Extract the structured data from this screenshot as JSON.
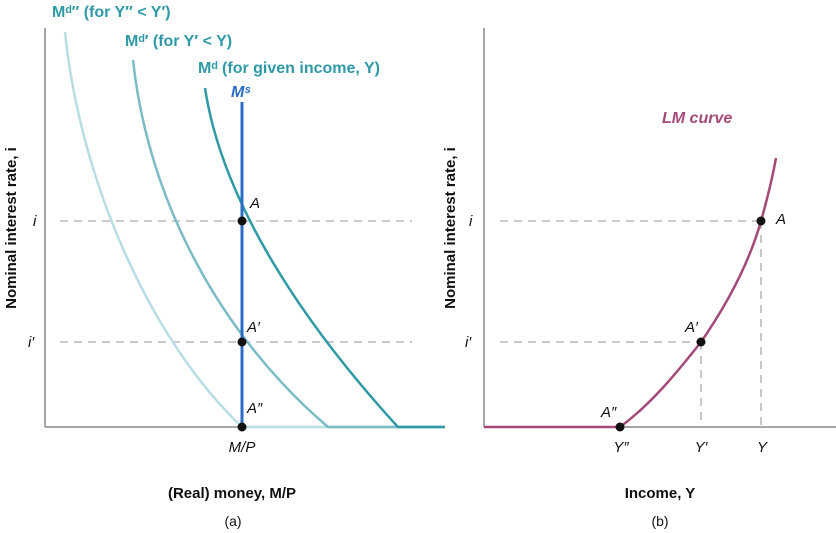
{
  "colors": {
    "md_dd": "#b9dde4",
    "md_d": "#7bbcc6",
    "md": "#2f9aa6",
    "ms": "#2b6cc4",
    "lm": "#a34a78",
    "guide": "#aaaaaa",
    "axis": "#888888",
    "point": "#111111"
  },
  "panel_a": {
    "y_axis_label": "Nominal interest rate, i",
    "x_axis_label": "(Real) money, M/P",
    "panel_label": "(a)",
    "ticks": {
      "i": "i",
      "i_prime": "i′",
      "mp": "M/P"
    },
    "curves": {
      "md_dd": "Mᵈ″ (for Y″ < Y′)",
      "md_d": "Mᵈ′ (for Y′ < Y)",
      "md": "Mᵈ (for given income, Y)",
      "ms": "Mˢ"
    },
    "points": {
      "A": "A",
      "A_prime": "A′",
      "A_dd": "A″"
    }
  },
  "panel_b": {
    "y_axis_label": "Nominal interest rate, i",
    "x_axis_label": "Income, Y",
    "panel_label": "(b)",
    "curve_label": "LM curve",
    "ticks": {
      "i": "i",
      "i_prime": "i′",
      "y_dd": "Y″",
      "y_d": "Y′",
      "y": "Y"
    },
    "points": {
      "A": "A",
      "A_prime": "A′",
      "A_dd": "A″"
    }
  }
}
